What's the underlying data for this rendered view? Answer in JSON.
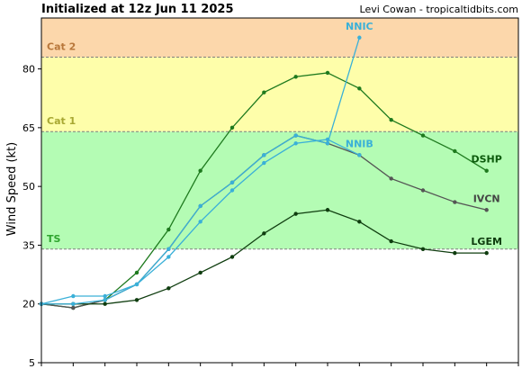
{
  "header": {
    "title": "Initialized at 12z Jun 11 2025",
    "credit": "Levi Cowan - tropicaltidbits.com"
  },
  "chart_data": {
    "type": "line",
    "ylabel": "Wind Speed (kt)",
    "ylim": [
      5,
      93
    ],
    "yticks": [
      5,
      20,
      35,
      50,
      65,
      80
    ],
    "xlim": [
      0,
      15
    ],
    "grid": false,
    "bands": [
      {
        "name": "TS",
        "from": 34,
        "to": 64,
        "fill": "#b4fcb4",
        "label_color": "#2fa52f",
        "line_color": "#808080"
      },
      {
        "name": "Cat 1",
        "from": 64,
        "to": 83,
        "fill": "#fefeaa",
        "label_color": "#a8a832",
        "line_color": "#808080"
      },
      {
        "name": "Cat 2",
        "from": 83,
        "to": 93,
        "fill": "#fcd7ab",
        "label_color": "#b8773a",
        "line_color": "#808080"
      }
    ],
    "series": [
      {
        "name": "DSHP",
        "color": "#1e7a1e",
        "label_color": "#0c5a0c",
        "x": [
          0,
          1,
          2,
          3,
          4,
          5,
          6,
          7,
          8,
          9,
          10,
          11,
          12,
          13,
          14
        ],
        "values": [
          20,
          19,
          21,
          28,
          39,
          54,
          65,
          74,
          78,
          79,
          75,
          67,
          63,
          59,
          54
        ]
      },
      {
        "name": "IVCN",
        "color": "#555555",
        "label_color": "#444444",
        "x": [
          0,
          1,
          2,
          3,
          4,
          5,
          6,
          7,
          8,
          9,
          10,
          11,
          12,
          13,
          14
        ],
        "values": [
          20,
          19,
          21,
          25,
          34,
          45,
          51,
          58,
          63,
          61,
          58,
          52,
          49,
          46,
          44
        ]
      },
      {
        "name": "LGEM",
        "color": "#0f3d0f",
        "label_color": "#0c3a0c",
        "x": [
          0,
          1,
          2,
          3,
          4,
          5,
          6,
          7,
          8,
          9,
          10,
          11,
          12,
          13,
          14
        ],
        "values": [
          20,
          20,
          20,
          21,
          24,
          28,
          32,
          38,
          43,
          44,
          41,
          36,
          34,
          33,
          33
        ]
      },
      {
        "name": "NNIB",
        "color": "#3ab0d8",
        "label_color": "#3ab0d8",
        "x": [
          0,
          1,
          2,
          3,
          4,
          5,
          6,
          7,
          8,
          9,
          10
        ],
        "values": [
          20,
          20,
          21,
          25,
          32,
          41,
          49,
          56,
          61,
          62,
          58
        ]
      },
      {
        "name": "NNIC",
        "color": "#3ab0d8",
        "label_color": "#3ab0d8",
        "x": [
          0,
          1,
          2,
          3,
          4,
          5,
          6,
          7,
          8,
          9,
          10
        ],
        "values": [
          20,
          22,
          22,
          25,
          34,
          45,
          51,
          58,
          63,
          61,
          88
        ]
      }
    ]
  }
}
